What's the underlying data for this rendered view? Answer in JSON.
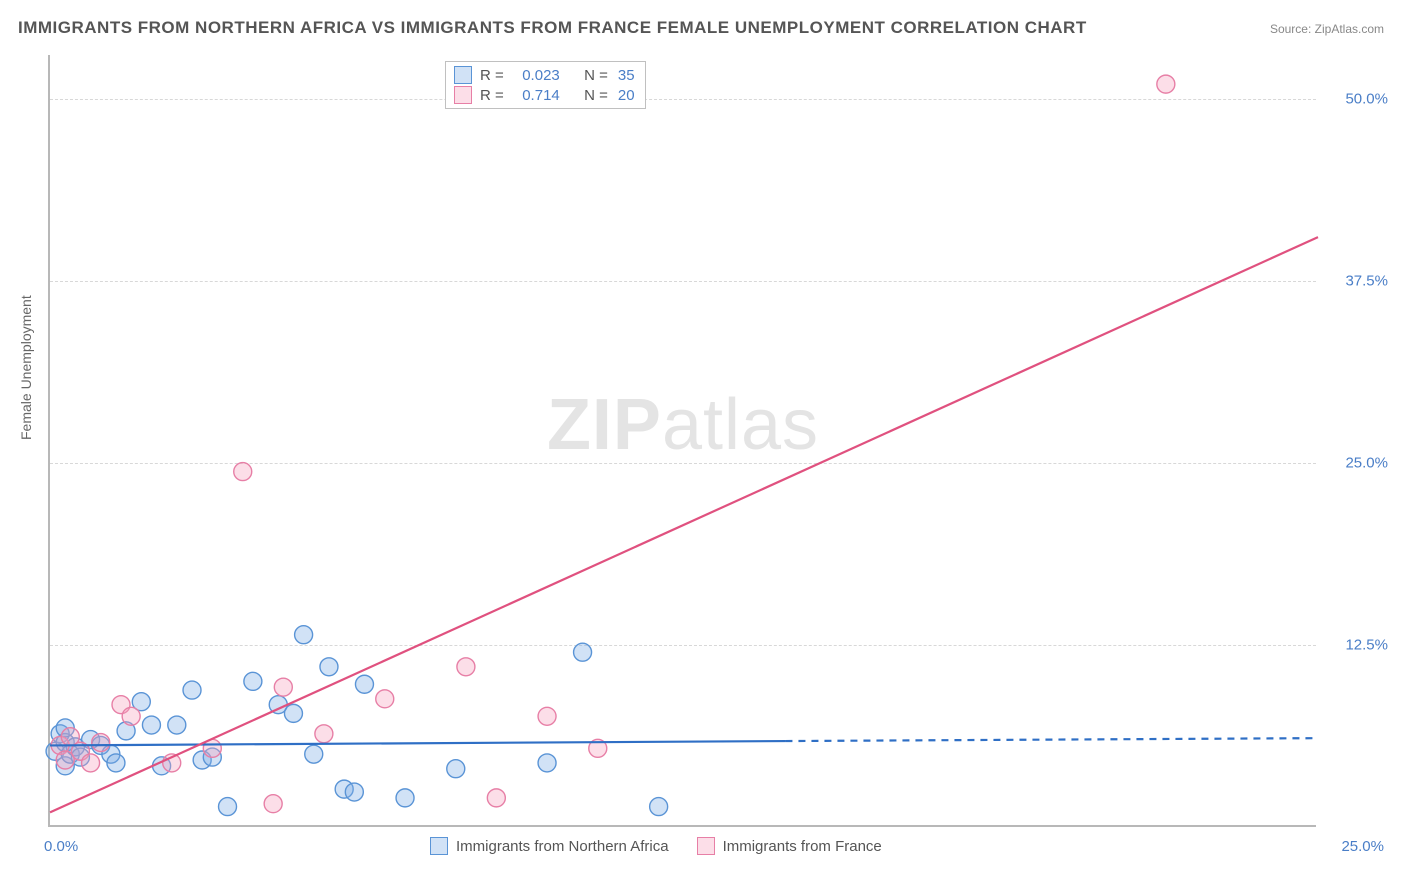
{
  "title": "IMMIGRANTS FROM NORTHERN AFRICA VS IMMIGRANTS FROM FRANCE FEMALE UNEMPLOYMENT CORRELATION CHART",
  "source": "Source: ZipAtlas.com",
  "ylabel": "Female Unemployment",
  "watermark_bold": "ZIP",
  "watermark_thin": "atlas",
  "chart": {
    "type": "scatter",
    "xlim": [
      0,
      25
    ],
    "ylim": [
      0,
      53
    ],
    "ytick_values": [
      12.5,
      25.0,
      37.5,
      50.0
    ],
    "ytick_labels": [
      "12.5%",
      "25.0%",
      "37.5%",
      "50.0%"
    ],
    "xtick_min_label": "0.0%",
    "xtick_max_label": "25.0%",
    "grid_color": "#d8d8d8",
    "axis_color": "#b8b8b8",
    "background_color": "#ffffff"
  },
  "series": [
    {
      "id": "northern_africa",
      "label": "Immigrants from Northern Africa",
      "color_fill": "rgba(122,171,230,0.35)",
      "color_stroke": "#5a94d6",
      "R": "0.023",
      "N": "35",
      "marker_radius": 9,
      "points": [
        [
          0.1,
          5.2
        ],
        [
          0.2,
          6.4
        ],
        [
          0.3,
          5.8
        ],
        [
          0.3,
          4.2
        ],
        [
          0.3,
          6.8
        ],
        [
          0.4,
          5.0
        ],
        [
          0.5,
          5.5
        ],
        [
          0.6,
          4.8
        ],
        [
          0.8,
          6.0
        ],
        [
          1.0,
          5.6
        ],
        [
          1.2,
          5.0
        ],
        [
          1.3,
          4.4
        ],
        [
          1.5,
          6.6
        ],
        [
          1.8,
          8.6
        ],
        [
          2.0,
          7.0
        ],
        [
          2.2,
          4.2
        ],
        [
          2.5,
          7.0
        ],
        [
          2.8,
          9.4
        ],
        [
          3.0,
          4.6
        ],
        [
          3.2,
          4.8
        ],
        [
          3.5,
          1.4
        ],
        [
          4.0,
          10.0
        ],
        [
          4.5,
          8.4
        ],
        [
          4.8,
          7.8
        ],
        [
          5.0,
          13.2
        ],
        [
          5.2,
          5.0
        ],
        [
          5.5,
          11.0
        ],
        [
          5.8,
          2.6
        ],
        [
          6.0,
          2.4
        ],
        [
          6.2,
          9.8
        ],
        [
          7.0,
          2.0
        ],
        [
          8.0,
          4.0
        ],
        [
          9.8,
          4.4
        ],
        [
          10.5,
          12.0
        ],
        [
          12.0,
          1.4
        ]
      ],
      "regression": {
        "x1": 0,
        "y1": 5.6,
        "x2": 14.5,
        "y2": 5.9,
        "dash_x2": 25,
        "dash_y2": 6.1,
        "stroke_width": 2.2
      }
    },
    {
      "id": "france",
      "label": "Immigrants from France",
      "color_fill": "rgba(245,160,190,0.35)",
      "color_stroke": "#e77fa6",
      "R": "0.714",
      "N": "20",
      "marker_radius": 9,
      "points": [
        [
          0.2,
          5.6
        ],
        [
          0.3,
          4.6
        ],
        [
          0.4,
          6.2
        ],
        [
          0.6,
          5.2
        ],
        [
          0.8,
          4.4
        ],
        [
          1.0,
          5.8
        ],
        [
          1.4,
          8.4
        ],
        [
          1.6,
          7.6
        ],
        [
          2.4,
          4.4
        ],
        [
          3.2,
          5.4
        ],
        [
          3.8,
          24.4
        ],
        [
          4.4,
          1.6
        ],
        [
          4.6,
          9.6
        ],
        [
          5.4,
          6.4
        ],
        [
          6.6,
          8.8
        ],
        [
          8.2,
          11.0
        ],
        [
          8.8,
          2.0
        ],
        [
          9.8,
          7.6
        ],
        [
          10.8,
          5.4
        ],
        [
          22.0,
          51.0
        ]
      ],
      "regression": {
        "x1": 0,
        "y1": 1.0,
        "x2": 25,
        "y2": 40.5,
        "stroke_width": 2.2
      }
    }
  ],
  "legend_static": {
    "R_label": "R =",
    "N_label": "N ="
  }
}
